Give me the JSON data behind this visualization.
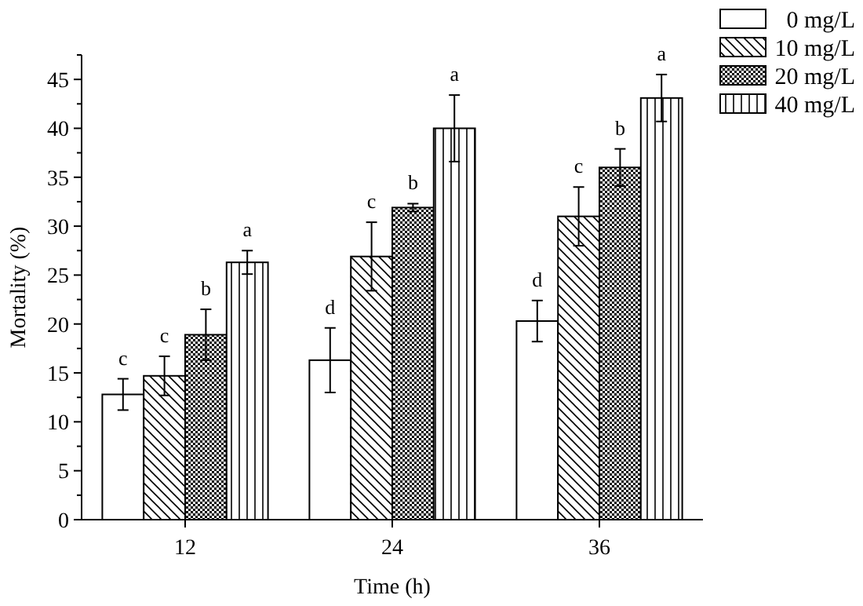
{
  "chart_data": {
    "type": "bar",
    "xlabel": "Time (h)",
    "ylabel": "Mortality (%)",
    "categories": [
      "12",
      "24",
      "36"
    ],
    "series": [
      {
        "name": "0 mg/L",
        "color": "#ffffff",
        "values": [
          12.8,
          16.3,
          20.3
        ],
        "errors": [
          1.6,
          3.3,
          2.1
        ],
        "value_labels": [
          "c",
          "d",
          "d"
        ]
      },
      {
        "name": "10 mg/L",
        "color": "#000000",
        "values": [
          14.7,
          26.9,
          31.0
        ],
        "errors": [
          2.0,
          3.5,
          3.0
        ],
        "value_labels": [
          "c",
          "c",
          "c"
        ]
      },
      {
        "name": "20 mg/L",
        "color": "#000000",
        "values": [
          18.9,
          31.9,
          36.0
        ],
        "errors": [
          2.6,
          0.4,
          1.9
        ],
        "value_labels": [
          "b",
          "b",
          "b"
        ]
      },
      {
        "name": "40 mg/L",
        "color": "#000000",
        "values": [
          26.3,
          40.0,
          43.1
        ],
        "errors": [
          1.2,
          3.4,
          2.4
        ],
        "value_labels": [
          "a",
          "a",
          "a"
        ]
      }
    ],
    "ylim": [
      0,
      47.5
    ],
    "yticks": [
      0,
      {
        "value": 2.5,
        "label": null
      },
      5,
      {
        "value": 7.5,
        "label": null
      },
      10,
      {
        "value": 12.5,
        "label": null
      },
      15,
      {
        "value": 17.5,
        "label": null
      },
      20,
      {
        "value": 22.5,
        "label": null
      },
      25,
      {
        "value": 27.5,
        "label": null
      },
      30,
      {
        "value": 32.5,
        "label": null
      },
      35,
      {
        "value": 37.5,
        "label": null
      },
      40,
      {
        "value": 42.5,
        "label": null
      },
      45,
      {
        "value": 47.5,
        "label": null
      }
    ],
    "grid": false,
    "legend": "top right"
  }
}
